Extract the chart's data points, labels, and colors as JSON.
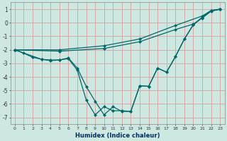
{
  "xlabel": "Humidex (Indice chaleur)",
  "bg_color": "#cce8e0",
  "grid_color": "#d8a8a8",
  "line_color": "#006868",
  "ylim": [
    -7.5,
    1.5
  ],
  "xlim": [
    -0.5,
    23.5
  ],
  "yticks": [
    -7,
    -6,
    -5,
    -4,
    -3,
    -2,
    -1,
    0,
    1
  ],
  "xticks": [
    0,
    1,
    2,
    3,
    4,
    5,
    6,
    7,
    8,
    9,
    10,
    11,
    12,
    13,
    14,
    15,
    16,
    17,
    18,
    19,
    20,
    21,
    22,
    23
  ],
  "line1_x": [
    0,
    5,
    10,
    14,
    18,
    21,
    22,
    23
  ],
  "line1_y": [
    -2.0,
    -2.0,
    -1.7,
    -1.2,
    -0.2,
    0.5,
    0.9,
    1.0
  ],
  "line2_x": [
    0,
    5,
    10,
    14,
    18,
    20,
    21,
    22,
    23
  ],
  "line2_y": [
    -2.0,
    -2.1,
    -1.9,
    -1.4,
    -0.5,
    -0.1,
    0.35,
    0.85,
    1.0
  ],
  "line3_x": [
    0,
    1,
    2,
    3,
    4,
    5,
    6,
    7,
    8,
    9,
    10,
    11,
    12,
    13,
    14,
    15,
    16,
    17,
    18,
    19,
    20,
    21,
    22,
    23
  ],
  "line3_y": [
    -2.0,
    -2.25,
    -2.55,
    -2.7,
    -2.75,
    -2.75,
    -2.6,
    -3.35,
    -4.7,
    -5.8,
    -6.8,
    -6.2,
    -6.55,
    -6.55,
    -4.65,
    -4.7,
    -3.35,
    -3.65,
    -2.5,
    -1.2,
    -0.15,
    0.4,
    0.9,
    1.0
  ],
  "line4_x": [
    0,
    3,
    4,
    5,
    6,
    7,
    8,
    9,
    10,
    11,
    12,
    13,
    14,
    15,
    16,
    17,
    18,
    19,
    20,
    21,
    22,
    23
  ],
  "line4_y": [
    -2.0,
    -2.7,
    -2.8,
    -2.75,
    -2.65,
    -3.5,
    -5.7,
    -6.8,
    -6.2,
    -6.5,
    -6.5,
    -6.55,
    -4.65,
    -4.7,
    -3.35,
    -3.65,
    -2.5,
    -1.2,
    -0.15,
    0.4,
    0.9,
    1.0
  ]
}
